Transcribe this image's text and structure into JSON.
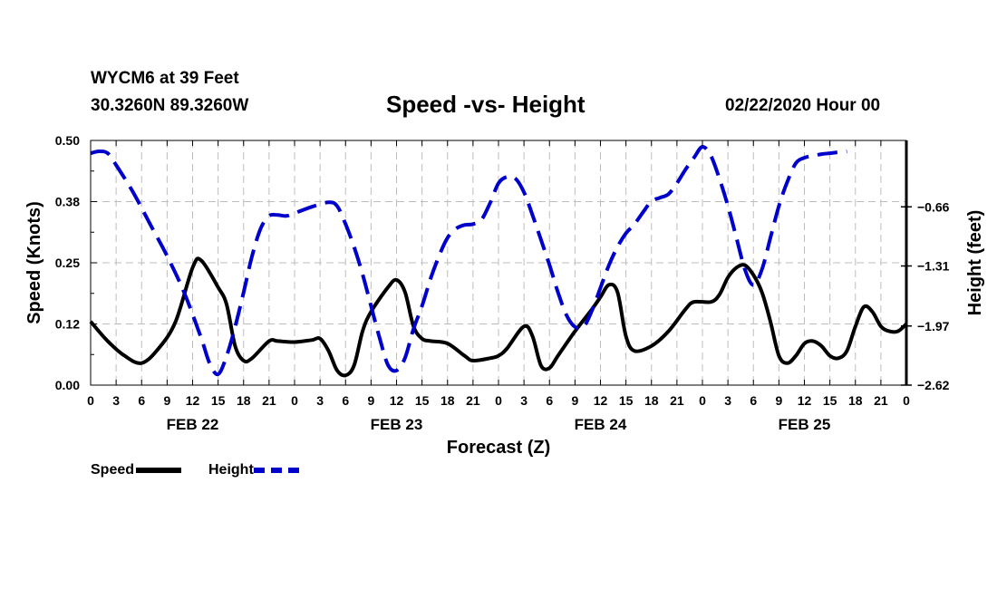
{
  "header": {
    "station": "WYCM6 at 39 Feet",
    "coords": "30.3260N 89.3260W",
    "title": "Speed -vs- Height",
    "datetime": "02/22/2020 Hour 00"
  },
  "colors": {
    "speed": "#000000",
    "height": "#0000cc",
    "grid": "#bdbdbd"
  },
  "chart_data": {
    "type": "line",
    "title": "Speed -vs- Height",
    "xlabel": "Forecast (Z)",
    "ylabel": "Speed (Knots)",
    "y2label": "Height (feet)",
    "xlim": [
      0,
      96
    ],
    "ylim": [
      0,
      0.5
    ],
    "y2lim": [
      -2.62,
      0.07
    ],
    "yticks": [
      "0.00",
      "0.12",
      "0.25",
      "0.38",
      "0.50"
    ],
    "ytick_values": [
      0,
      0.125,
      0.25,
      0.375,
      0.5
    ],
    "y2ticks": [
      "−0.66",
      "−1.31",
      "−1.97",
      "−2.62"
    ],
    "y2tick_values": [
      -0.66,
      -1.31,
      -1.97,
      -2.62
    ],
    "xtick_labels": [
      "0",
      "3",
      "6",
      "9",
      "12",
      "15",
      "18",
      "21",
      "0",
      "3",
      "6",
      "9",
      "12",
      "15",
      "18",
      "21",
      "0",
      "3",
      "6",
      "9",
      "12",
      "15",
      "18",
      "21",
      "0",
      "3",
      "6",
      "9",
      "12",
      "15",
      "18",
      "21",
      "0"
    ],
    "day_labels": [
      {
        "label": "FEB 22",
        "hour": 12
      },
      {
        "label": "FEB 23",
        "hour": 36
      },
      {
        "label": "FEB 24",
        "hour": 60
      },
      {
        "label": "FEB 25",
        "hour": 84
      }
    ],
    "legend": [
      {
        "name": "Speed",
        "style": "solid"
      },
      {
        "name": "Height",
        "style": "dashed"
      }
    ],
    "series": [
      {
        "name": "Speed",
        "axis": "left",
        "points": [
          [
            0,
            0.13
          ],
          [
            2,
            0.09
          ],
          [
            4,
            0.06
          ],
          [
            6,
            0.045
          ],
          [
            8,
            0.075
          ],
          [
            10,
            0.13
          ],
          [
            12,
            0.24
          ],
          [
            13,
            0.255
          ],
          [
            15,
            0.2
          ],
          [
            16,
            0.165
          ],
          [
            17,
            0.08
          ],
          [
            18,
            0.05
          ],
          [
            19,
            0.055
          ],
          [
            21,
            0.09
          ],
          [
            22,
            0.09
          ],
          [
            24,
            0.088
          ],
          [
            26,
            0.092
          ],
          [
            27,
            0.095
          ],
          [
            28,
            0.07
          ],
          [
            29,
            0.03
          ],
          [
            30,
            0.02
          ],
          [
            31,
            0.04
          ],
          [
            32,
            0.11
          ],
          [
            33,
            0.15
          ],
          [
            35,
            0.2
          ],
          [
            36,
            0.215
          ],
          [
            37,
            0.19
          ],
          [
            38,
            0.12
          ],
          [
            39,
            0.095
          ],
          [
            40,
            0.09
          ],
          [
            42,
            0.085
          ],
          [
            44,
            0.06
          ],
          [
            45,
            0.05
          ],
          [
            47,
            0.055
          ],
          [
            48,
            0.06
          ],
          [
            49,
            0.075
          ],
          [
            51,
            0.12
          ],
          [
            52,
            0.1
          ],
          [
            53,
            0.04
          ],
          [
            54,
            0.035
          ],
          [
            55,
            0.06
          ],
          [
            57,
            0.11
          ],
          [
            59,
            0.155
          ],
          [
            60,
            0.18
          ],
          [
            61,
            0.205
          ],
          [
            62,
            0.19
          ],
          [
            63,
            0.1
          ],
          [
            64,
            0.07
          ],
          [
            66,
            0.08
          ],
          [
            68,
            0.11
          ],
          [
            70,
            0.155
          ],
          [
            71,
            0.17
          ],
          [
            73,
            0.17
          ],
          [
            74,
            0.185
          ],
          [
            75,
            0.22
          ],
          [
            76,
            0.24
          ],
          [
            77,
            0.245
          ],
          [
            78,
            0.225
          ],
          [
            79,
            0.19
          ],
          [
            80,
            0.13
          ],
          [
            81,
            0.06
          ],
          [
            82,
            0.045
          ],
          [
            83,
            0.06
          ],
          [
            84,
            0.085
          ],
          [
            85,
            0.09
          ],
          [
            86,
            0.08
          ],
          [
            87,
            0.06
          ],
          [
            88,
            0.055
          ],
          [
            89,
            0.07
          ],
          [
            90,
            0.12
          ],
          [
            91,
            0.16
          ],
          [
            92,
            0.15
          ],
          [
            93,
            0.12
          ],
          [
            94,
            0.11
          ],
          [
            95,
            0.11
          ],
          [
            96,
            0.125
          ]
        ]
      },
      {
        "name": "Height",
        "axis": "right",
        "points": [
          [
            0,
            -0.07
          ],
          [
            1,
            -0.05
          ],
          [
            2,
            -0.07
          ],
          [
            3,
            -0.2
          ],
          [
            5,
            -0.5
          ],
          [
            7,
            -0.85
          ],
          [
            9,
            -1.2
          ],
          [
            11,
            -1.6
          ],
          [
            13,
            -2.1
          ],
          [
            14,
            -2.38
          ],
          [
            15,
            -2.5
          ],
          [
            16,
            -2.3
          ],
          [
            17,
            -1.98
          ],
          [
            18,
            -1.6
          ],
          [
            19,
            -1.2
          ],
          [
            20,
            -0.9
          ],
          [
            21,
            -0.76
          ],
          [
            22,
            -0.75
          ],
          [
            23,
            -0.76
          ],
          [
            24,
            -0.73
          ],
          [
            26,
            -0.66
          ],
          [
            28,
            -0.61
          ],
          [
            29,
            -0.65
          ],
          [
            30,
            -0.85
          ],
          [
            31,
            -1.1
          ],
          [
            32,
            -1.4
          ],
          [
            33,
            -1.75
          ],
          [
            34,
            -2.1
          ],
          [
            35,
            -2.4
          ],
          [
            36,
            -2.46
          ],
          [
            37,
            -2.32
          ],
          [
            38,
            -2.0
          ],
          [
            39,
            -1.75
          ],
          [
            40,
            -1.45
          ],
          [
            41,
            -1.2
          ],
          [
            42,
            -1.0
          ],
          [
            43,
            -0.9
          ],
          [
            44,
            -0.86
          ],
          [
            45,
            -0.85
          ],
          [
            46,
            -0.8
          ],
          [
            47,
            -0.62
          ],
          [
            48,
            -0.4
          ],
          [
            49,
            -0.33
          ],
          [
            50,
            -0.35
          ],
          [
            51,
            -0.5
          ],
          [
            52,
            -0.75
          ],
          [
            54,
            -1.3
          ],
          [
            55,
            -1.6
          ],
          [
            56,
            -1.85
          ],
          [
            57,
            -1.98
          ],
          [
            58,
            -1.98
          ],
          [
            59,
            -1.8
          ],
          [
            60,
            -1.55
          ],
          [
            61,
            -1.3
          ],
          [
            62,
            -1.1
          ],
          [
            63,
            -0.95
          ],
          [
            64,
            -0.85
          ],
          [
            65,
            -0.72
          ],
          [
            66,
            -0.6
          ],
          [
            67,
            -0.56
          ],
          [
            68,
            -0.52
          ],
          [
            69,
            -0.4
          ],
          [
            70,
            -0.25
          ],
          [
            71,
            -0.12
          ],
          [
            72,
            0.0
          ],
          [
            73,
            -0.1
          ],
          [
            74,
            -0.35
          ],
          [
            75,
            -0.65
          ],
          [
            76,
            -1.0
          ],
          [
            77,
            -1.35
          ],
          [
            78,
            -1.52
          ],
          [
            79,
            -1.35
          ],
          [
            80,
            -1.0
          ],
          [
            81,
            -0.65
          ],
          [
            82,
            -0.38
          ],
          [
            83,
            -0.18
          ],
          [
            84,
            -0.12
          ],
          [
            85,
            -0.1
          ],
          [
            86,
            -0.08
          ],
          [
            87,
            -0.07
          ],
          [
            88,
            -0.06
          ],
          [
            89,
            -0.05
          ]
        ]
      }
    ]
  }
}
